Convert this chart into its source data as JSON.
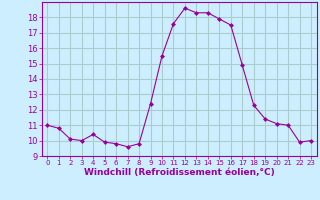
{
  "x": [
    0,
    1,
    2,
    3,
    4,
    5,
    6,
    7,
    8,
    9,
    10,
    11,
    12,
    13,
    14,
    15,
    16,
    17,
    18,
    19,
    20,
    21,
    22,
    23
  ],
  "y": [
    11.0,
    10.8,
    10.1,
    10.0,
    10.4,
    9.9,
    9.8,
    9.6,
    9.8,
    12.4,
    15.5,
    17.6,
    18.6,
    18.3,
    18.3,
    17.9,
    17.5,
    14.9,
    12.3,
    11.4,
    11.1,
    11.0,
    9.9,
    10.0
  ],
  "line_color": "#990099",
  "marker": "D",
  "marker_size": 2,
  "bg_color": "#cceeff",
  "grid_color": "#aacccc",
  "xlabel": "Windchill (Refroidissement éolien,°C)",
  "xlabel_fontsize": 6.5,
  "ylim": [
    9,
    19
  ],
  "xlim": [
    -0.5,
    23.5
  ],
  "yticks": [
    9,
    10,
    11,
    12,
    13,
    14,
    15,
    16,
    17,
    18
  ],
  "xticks": [
    0,
    1,
    2,
    3,
    4,
    5,
    6,
    7,
    8,
    9,
    10,
    11,
    12,
    13,
    14,
    15,
    16,
    17,
    18,
    19,
    20,
    21,
    22,
    23
  ],
  "ytick_fontsize": 6,
  "xtick_fontsize": 5,
  "tick_color": "#990099",
  "label_color": "#990099",
  "spine_color": "#990099"
}
